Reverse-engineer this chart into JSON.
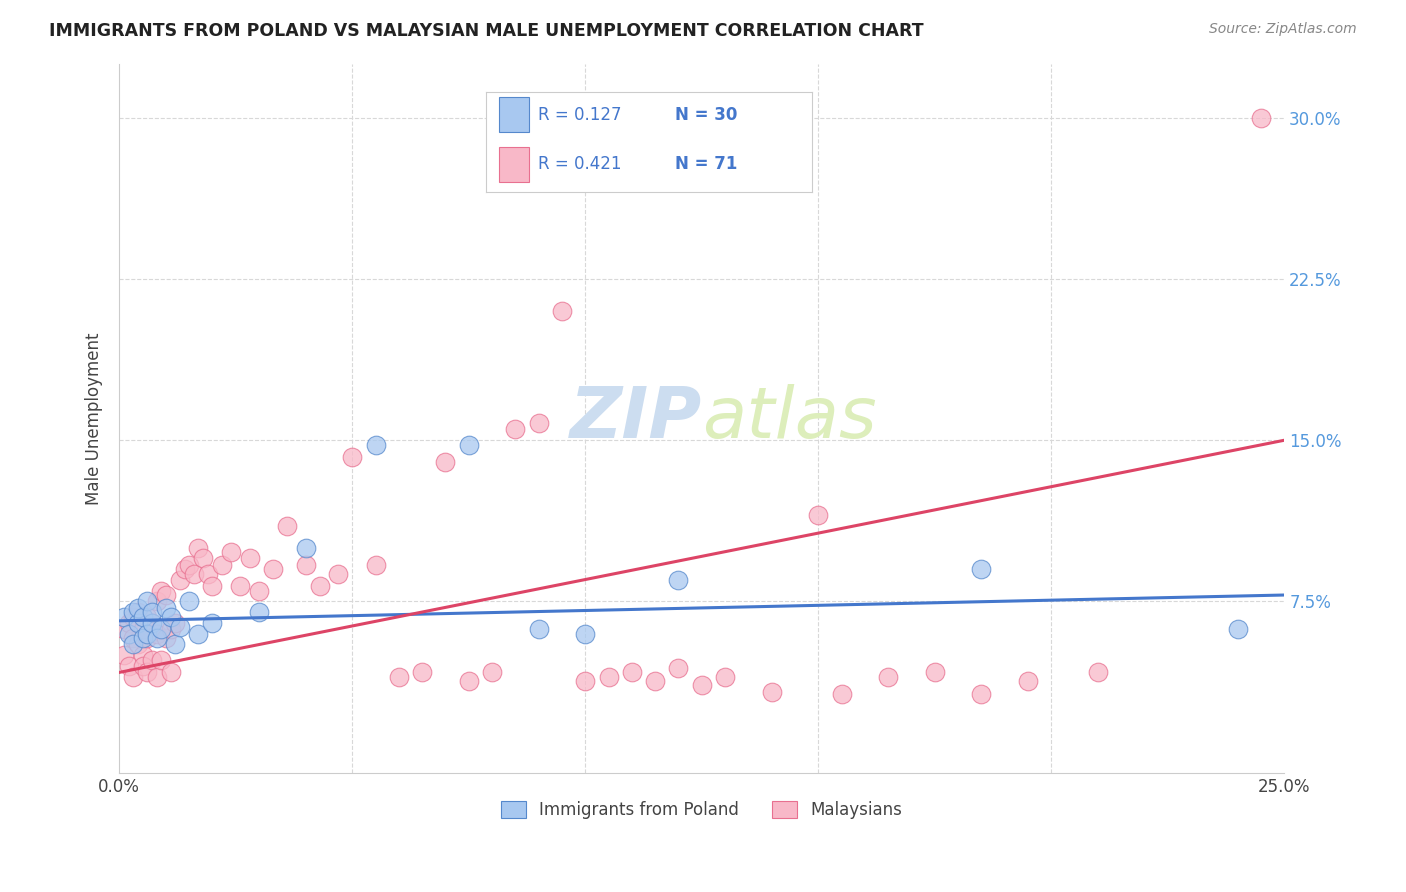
{
  "title": "IMMIGRANTS FROM POLAND VS MALAYSIAN MALE UNEMPLOYMENT CORRELATION CHART",
  "source": "Source: ZipAtlas.com",
  "ylabel": "Male Unemployment",
  "xlim": [
    0.0,
    0.25
  ],
  "ylim": [
    -0.005,
    0.325
  ],
  "background_color": "#ffffff",
  "grid_color": "#d8d8d8",
  "blue_fill": "#a8c8f0",
  "blue_edge": "#5588cc",
  "pink_fill": "#f8b8c8",
  "pink_edge": "#e87090",
  "blue_line": "#4477cc",
  "pink_line": "#dd4466",
  "title_color": "#222222",
  "legend_text_color": "#4477cc",
  "watermark_color": "#ddeeff",
  "right_tick_color": "#5599dd",
  "poland_x": [
    0.001,
    0.002,
    0.003,
    0.003,
    0.004,
    0.004,
    0.005,
    0.005,
    0.006,
    0.006,
    0.007,
    0.007,
    0.008,
    0.009,
    0.01,
    0.011,
    0.012,
    0.013,
    0.015,
    0.017,
    0.02,
    0.03,
    0.04,
    0.055,
    0.075,
    0.09,
    0.1,
    0.12,
    0.185,
    0.24
  ],
  "poland_y": [
    0.068,
    0.06,
    0.07,
    0.055,
    0.065,
    0.072,
    0.058,
    0.068,
    0.06,
    0.075,
    0.065,
    0.07,
    0.058,
    0.062,
    0.072,
    0.068,
    0.055,
    0.063,
    0.075,
    0.06,
    0.065,
    0.07,
    0.1,
    0.148,
    0.148,
    0.062,
    0.06,
    0.085,
    0.09,
    0.062
  ],
  "malaysian_x": [
    0.001,
    0.001,
    0.002,
    0.002,
    0.003,
    0.003,
    0.003,
    0.004,
    0.004,
    0.005,
    0.005,
    0.005,
    0.006,
    0.006,
    0.006,
    0.007,
    0.007,
    0.008,
    0.008,
    0.008,
    0.009,
    0.009,
    0.01,
    0.01,
    0.011,
    0.011,
    0.012,
    0.013,
    0.014,
    0.015,
    0.016,
    0.017,
    0.018,
    0.019,
    0.02,
    0.022,
    0.024,
    0.026,
    0.028,
    0.03,
    0.033,
    0.036,
    0.04,
    0.043,
    0.047,
    0.05,
    0.055,
    0.06,
    0.065,
    0.07,
    0.075,
    0.08,
    0.085,
    0.09,
    0.095,
    0.1,
    0.105,
    0.11,
    0.115,
    0.12,
    0.125,
    0.13,
    0.14,
    0.15,
    0.155,
    0.165,
    0.175,
    0.185,
    0.195,
    0.21,
    0.245
  ],
  "malaysian_y": [
    0.062,
    0.05,
    0.065,
    0.045,
    0.068,
    0.058,
    0.04,
    0.07,
    0.055,
    0.062,
    0.05,
    0.045,
    0.068,
    0.058,
    0.042,
    0.065,
    0.048,
    0.06,
    0.075,
    0.04,
    0.08,
    0.048,
    0.078,
    0.058,
    0.062,
    0.042,
    0.065,
    0.085,
    0.09,
    0.092,
    0.088,
    0.1,
    0.095,
    0.088,
    0.082,
    0.092,
    0.098,
    0.082,
    0.095,
    0.08,
    0.09,
    0.11,
    0.092,
    0.082,
    0.088,
    0.142,
    0.092,
    0.04,
    0.042,
    0.14,
    0.038,
    0.042,
    0.155,
    0.158,
    0.21,
    0.038,
    0.04,
    0.042,
    0.038,
    0.044,
    0.036,
    0.04,
    0.033,
    0.115,
    0.032,
    0.04,
    0.042,
    0.032,
    0.038,
    0.042,
    0.3
  ],
  "blue_line_x0": 0.0,
  "blue_line_x1": 0.25,
  "blue_line_y0": 0.066,
  "blue_line_y1": 0.078,
  "pink_line_x0": 0.0,
  "pink_line_x1": 0.25,
  "pink_line_y0": 0.042,
  "pink_line_y1": 0.15
}
